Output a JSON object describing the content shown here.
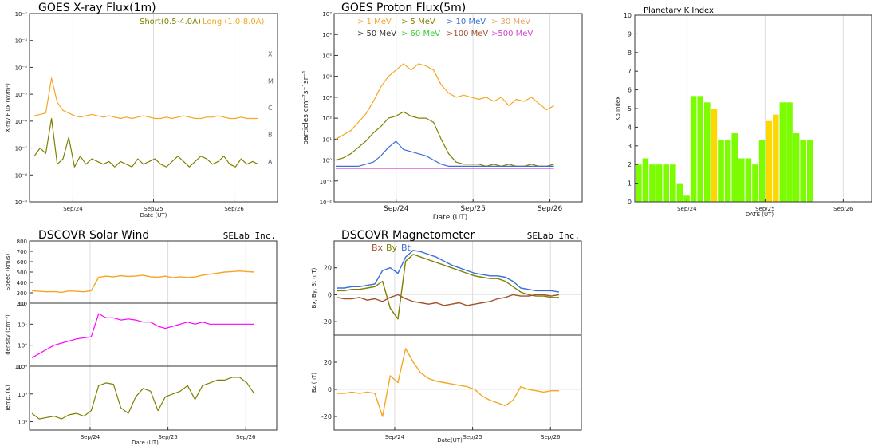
{
  "colors": {
    "short": "#808000",
    "long": "#f5a623",
    "p1": "#f5a623",
    "p5": "#808000",
    "p10": "#3a6fd8",
    "p30": "#e8a060",
    "p50": "#333333",
    "p60": "#33cc33",
    "p100": "#a0522d",
    "p500": "#cc44cc",
    "kp_green": "#7cfc00",
    "kp_yellow": "#ffd700",
    "speed": "#f5a623",
    "density": "#ff00ff",
    "temp": "#808000",
    "bx": "#a0522d",
    "by": "#808000",
    "bt": "#3a6fd8",
    "bz": "#f5a623"
  },
  "chart_data": [
    {
      "id": "xray",
      "type": "line",
      "title": "GOES X-ray Flux(1m)",
      "xlabel": "Date (UT)",
      "ylabel": "X-ray Flux (W/m²)",
      "x_ticks": [
        "Sep/24",
        "Sep/25",
        "Sep/26"
      ],
      "x_tick_pos": [
        0.175,
        0.5,
        0.825
      ],
      "yscale": "log",
      "ylim_exp": [
        -9,
        -2
      ],
      "y_tick_labels": [
        "10⁻⁹",
        "10⁻⁸",
        "10⁻⁷",
        "10⁻⁶",
        "10⁻⁵",
        "10⁻⁴",
        "10⁻³",
        "10⁻²"
      ],
      "flare_classes": [
        {
          "label": "X",
          "exp": -4
        },
        {
          "label": "M",
          "exp": -5
        },
        {
          "label": "C",
          "exp": -6
        },
        {
          "label": "B",
          "exp": -7
        },
        {
          "label": "A",
          "exp": -8
        }
      ],
      "legend": {
        "short": "Short(0.5-4.0A)",
        "long": "Long (1.0-8.0A)"
      },
      "series": [
        {
          "name": "Long (1.0-8.0A)",
          "color_key": "long",
          "values": [
            -5.8,
            -5.75,
            -5.7,
            -4.4,
            -5.3,
            -5.6,
            -5.7,
            -5.8,
            -5.85,
            -5.8,
            -5.75,
            -5.8,
            -5.85,
            -5.8,
            -5.85,
            -5.9,
            -5.85,
            -5.9,
            -5.85,
            -5.8,
            -5.85,
            -5.9,
            -5.9,
            -5.85,
            -5.9,
            -5.85,
            -5.8,
            -5.85,
            -5.9,
            -5.9,
            -5.85,
            -5.85,
            -5.8,
            -5.85,
            -5.9,
            -5.9,
            -5.85,
            -5.9,
            -5.9,
            -5.9
          ]
        },
        {
          "name": "Short(0.5-4.0A)",
          "color_key": "short",
          "values": [
            -7.3,
            -7.0,
            -7.2,
            -5.9,
            -7.6,
            -7.4,
            -6.6,
            -7.7,
            -7.3,
            -7.6,
            -7.4,
            -7.5,
            -7.6,
            -7.5,
            -7.7,
            -7.5,
            -7.6,
            -7.7,
            -7.4,
            -7.6,
            -7.5,
            -7.4,
            -7.6,
            -7.7,
            -7.5,
            -7.3,
            -7.5,
            -7.7,
            -7.5,
            -7.3,
            -7.4,
            -7.6,
            -7.5,
            -7.3,
            -7.6,
            -7.7,
            -7.4,
            -7.6,
            -7.5,
            -7.6
          ]
        }
      ]
    },
    {
      "id": "proton",
      "type": "line",
      "title": "GOES Proton Flux(5m)",
      "xlabel": "Date (UT)",
      "ylabel": "particles cm⁻²s⁻¹sr⁻¹",
      "x_ticks": [
        "Sep/24",
        "Sep/25",
        "Sep/26"
      ],
      "x_tick_pos": [
        0.25,
        0.56,
        0.87
      ],
      "yscale": "log",
      "ylim_exp": [
        -2,
        7
      ],
      "y_tick_labels": [
        "10⁻²",
        "10⁻¹",
        "10⁰",
        "10¹",
        "10²",
        "10³",
        "10⁴",
        "10⁵",
        "10⁶",
        "10⁷"
      ],
      "legend": [
        {
          "label": "> 1 MeV",
          "color_key": "p1"
        },
        {
          "label": "> 5 MeV",
          "color_key": "p5"
        },
        {
          "label": "> 10 MeV",
          "color_key": "p10"
        },
        {
          "label": "> 30 MeV",
          "color_key": "p30"
        },
        {
          "label": "> 50 MeV",
          "color_key": "p50"
        },
        {
          "label": "> 60 MeV",
          "color_key": "p60"
        },
        {
          "label": ">100 MeV",
          "color_key": "p100"
        },
        {
          "label": ">500 MeV",
          "color_key": "p500"
        }
      ],
      "x_extent": 0.88,
      "series": [
        {
          "name": "> 1 MeV",
          "color_key": "p1",
          "values": [
            1.0,
            1.2,
            1.4,
            1.8,
            2.2,
            2.8,
            3.5,
            4.0,
            4.3,
            4.6,
            4.3,
            4.6,
            4.5,
            4.3,
            3.6,
            3.2,
            3.0,
            3.1,
            3.0,
            2.9,
            3.0,
            2.8,
            3.0,
            2.6,
            2.9,
            2.8,
            3.0,
            2.7,
            2.4,
            2.6
          ]
        },
        {
          "name": "> 5 MeV",
          "color_key": "p5",
          "values": [
            0.0,
            0.1,
            0.3,
            0.6,
            0.9,
            1.3,
            1.6,
            2.0,
            2.1,
            2.3,
            2.1,
            2.0,
            2.0,
            1.8,
            1.0,
            0.3,
            -0.1,
            -0.2,
            -0.2,
            -0.2,
            -0.3,
            -0.2,
            -0.3,
            -0.2,
            -0.3,
            -0.3,
            -0.2,
            -0.3,
            -0.3,
            -0.2
          ]
        },
        {
          "name": "> 10 MeV",
          "color_key": "p10",
          "values": [
            -0.3,
            -0.3,
            -0.3,
            -0.3,
            -0.2,
            -0.1,
            0.2,
            0.6,
            0.9,
            0.5,
            0.4,
            0.3,
            0.2,
            0.0,
            -0.2,
            -0.3,
            -0.3,
            -0.3,
            -0.3,
            -0.3,
            -0.3,
            -0.3,
            -0.3,
            -0.3,
            -0.3,
            -0.3,
            -0.3,
            -0.3,
            -0.3,
            -0.3
          ]
        },
        {
          "name": ">500 MeV",
          "color_key": "p500",
          "values": [
            -0.4,
            -0.4,
            -0.4,
            -0.4,
            -0.4,
            -0.4,
            -0.4,
            -0.4,
            -0.4,
            -0.4,
            -0.4,
            -0.4,
            -0.4,
            -0.4,
            -0.4,
            -0.4,
            -0.4,
            -0.4,
            -0.4,
            -0.4,
            -0.4,
            -0.4,
            -0.4,
            -0.4,
            -0.4,
            -0.4,
            -0.4,
            -0.4,
            -0.4,
            -0.4
          ]
        }
      ]
    },
    {
      "id": "kp",
      "type": "bar",
      "title": "Planetary K Index",
      "xlabel": "DATE (UT)",
      "ylabel": "Kp Index",
      "ylim": [
        0,
        10
      ],
      "y_ticks": [
        "0",
        "1",
        "2",
        "3",
        "4",
        "5",
        "6",
        "7",
        "8",
        "9",
        "10"
      ],
      "x_ticks": [
        "Sep/24",
        "Sep/25",
        "Sep/26"
      ],
      "x_tick_pos": [
        0.22,
        0.55,
        0.88
      ],
      "values": [
        2.0,
        2.33,
        2.0,
        2.0,
        2.0,
        2.0,
        1.0,
        0.33,
        5.67,
        5.67,
        5.33,
        5.0,
        3.33,
        3.33,
        3.67,
        2.33,
        2.33,
        2.0,
        3.33,
        4.33,
        4.67,
        5.33,
        5.33,
        3.67,
        3.33,
        3.33
      ],
      "bar_colors": [
        "g",
        "g",
        "g",
        "g",
        "g",
        "g",
        "g",
        "g",
        "g",
        "g",
        "g",
        "y",
        "g",
        "g",
        "g",
        "g",
        "g",
        "g",
        "g",
        "y",
        "y",
        "g",
        "g",
        "g",
        "g",
        "g"
      ]
    },
    {
      "id": "solarwind",
      "type": "line",
      "title": "DSCOVR Solar Wind",
      "brand": "SELab Inc.",
      "xlabel": "Date (UT)",
      "x_ticks": [
        "Sep/24",
        "Sep/25",
        "Sep/26"
      ],
      "x_tick_pos": [
        0.245,
        0.56,
        0.875
      ],
      "panels": [
        {
          "ylabel": "Speed (km/s)",
          "ylim": [
            200,
            800
          ],
          "y_ticks": [
            "200",
            "300",
            "400",
            "500",
            "600",
            "700",
            "800"
          ],
          "color_key": "speed",
          "values": [
            320,
            315,
            310,
            312,
            305,
            318,
            315,
            310,
            320,
            450,
            460,
            455,
            465,
            458,
            462,
            470,
            455,
            450,
            460,
            445,
            455,
            448,
            452,
            470,
            480,
            490,
            500,
            505,
            510,
            505,
            500
          ]
        },
        {
          "ylabel": "density (cm⁻³)",
          "yscale": "log",
          "ylim_exp": [
            -1,
            2
          ],
          "y_tick_labels": [
            "10⁻¹",
            "10⁰",
            "10¹",
            "10²"
          ],
          "color_key": "density",
          "values": [
            -0.6,
            -0.4,
            -0.2,
            0.0,
            0.1,
            0.2,
            0.3,
            0.35,
            0.4,
            1.5,
            1.3,
            1.3,
            1.2,
            1.25,
            1.2,
            1.1,
            1.1,
            0.9,
            0.8,
            0.9,
            1.0,
            1.1,
            1.0,
            1.1,
            1.0,
            1.0,
            1.0,
            1.0,
            1.0,
            1.0,
            1.0
          ]
        },
        {
          "ylabel": "Temp. (K)",
          "yscale": "log",
          "ylim_exp": [
            3.7,
            6
          ],
          "y_tick_labels": [
            "10⁴",
            "10⁵",
            "10⁶"
          ],
          "color_key": "temp",
          "values": [
            4.3,
            4.1,
            4.15,
            4.2,
            4.1,
            4.25,
            4.3,
            4.2,
            4.4,
            5.3,
            5.4,
            5.35,
            4.5,
            4.3,
            4.9,
            5.2,
            5.1,
            4.4,
            4.9,
            5.0,
            5.1,
            5.3,
            4.8,
            5.3,
            5.4,
            5.5,
            5.5,
            5.6,
            5.6,
            5.4,
            5.0
          ]
        }
      ]
    },
    {
      "id": "magnetometer",
      "type": "line",
      "title": "DSCOVR Magnetometer",
      "brand": "SELab Inc.",
      "xlabel": "Date(UT)",
      "legend": [
        {
          "label": "Bx",
          "color_key": "bx"
        },
        {
          "label": "By",
          "color_key": "by"
        },
        {
          "label": "Bt",
          "color_key": "bt"
        }
      ],
      "x_ticks": [
        "Sep/24",
        "Sep/25",
        "Sep/26"
      ],
      "x_tick_pos": [
        0.245,
        0.56,
        0.875
      ],
      "panels": [
        {
          "ylabel": "Bx, By, Bt (nT)",
          "ylim": [
            -30,
            40
          ],
          "y_ticks": [
            "-20",
            "0",
            "20"
          ],
          "y_tick_vals": [
            -20,
            0,
            20
          ],
          "series": [
            {
              "name": "Bt",
              "color_key": "bt",
              "values": [
                5,
                5,
                6,
                6,
                7,
                8,
                18,
                20,
                16,
                28,
                33,
                32,
                30,
                28,
                25,
                22,
                20,
                18,
                16,
                15,
                14,
                14,
                13,
                10,
                5,
                4,
                3,
                3,
                3,
                2
              ]
            },
            {
              "name": "By",
              "color_key": "by",
              "values": [
                3,
                3,
                4,
                4,
                5,
                6,
                10,
                -10,
                -18,
                25,
                30,
                28,
                26,
                24,
                22,
                20,
                18,
                16,
                14,
                13,
                12,
                12,
                10,
                6,
                2,
                0,
                -1,
                -1,
                -2,
                -2
              ]
            },
            {
              "name": "Bx",
              "color_key": "bx",
              "values": [
                -2,
                -3,
                -3,
                -2,
                -4,
                -3,
                -5,
                -2,
                0,
                -3,
                -5,
                -6,
                -7,
                -6,
                -8,
                -7,
                -6,
                -8,
                -7,
                -6,
                -5,
                -3,
                -2,
                0,
                -1,
                -1,
                0,
                0,
                -1,
                0
              ]
            }
          ]
        },
        {
          "ylabel": "Bz (nT)",
          "ylim": [
            -30,
            40
          ],
          "y_ticks": [
            "-20",
            "0",
            "20"
          ],
          "y_tick_vals": [
            -20,
            0,
            20
          ],
          "series": [
            {
              "name": "Bz",
              "color_key": "bz",
              "values": [
                -3,
                -3,
                -2,
                -3,
                -2,
                -3,
                -20,
                10,
                5,
                30,
                20,
                12,
                8,
                6,
                5,
                4,
                3,
                2,
                0,
                -5,
                -8,
                -10,
                -12,
                -8,
                2,
                0,
                -1,
                -2,
                -1,
                -1
              ]
            }
          ]
        }
      ]
    }
  ]
}
